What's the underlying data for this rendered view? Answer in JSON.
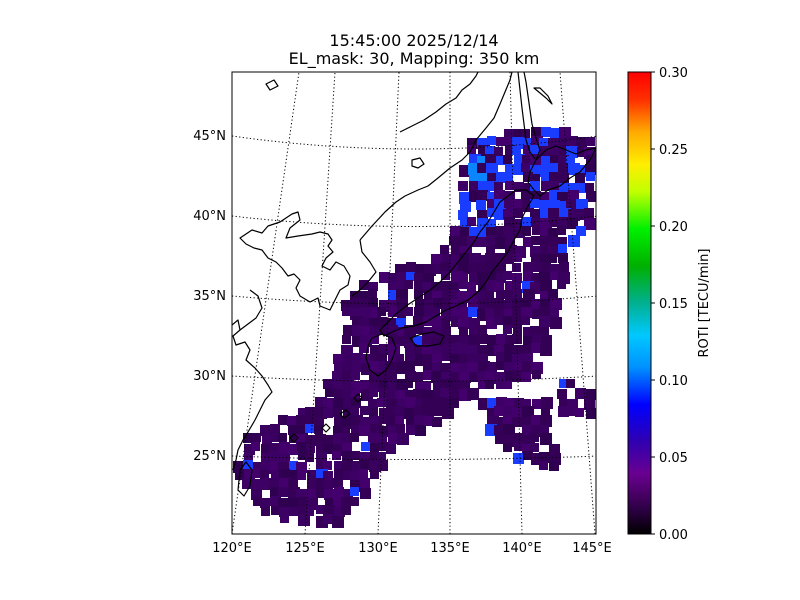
{
  "figure": {
    "title_line1": "15:45:00 2025/12/14",
    "title_line2": "EL_mask: 30, Mapping: 350 km"
  },
  "map": {
    "lon_ticks": [
      "120°E",
      "125°E",
      "130°E",
      "135°E",
      "140°E",
      "145°E"
    ],
    "lat_ticks": [
      "25°N",
      "30°N",
      "35°N",
      "40°N",
      "45°N"
    ],
    "lon_range": [
      120,
      145
    ],
    "lat_range": [
      20,
      49
    ],
    "graticule": "dotted",
    "coastlines": true
  },
  "colorbar": {
    "label": "ROTI [TECU/min]",
    "colormap": "nipy_spectral",
    "ticks": [
      "0.00",
      "0.05",
      "0.10",
      "0.15",
      "0.20",
      "0.25",
      "0.30"
    ],
    "vmin": 0.0,
    "vmax": 0.3
  },
  "observations": {
    "dominant_value": 0.04,
    "dominant_color": "#3a0060",
    "elevated_color": "#1a3cff",
    "highest_color": "#0a84ff",
    "coverage_region": "Japan and adjacent seas"
  }
}
